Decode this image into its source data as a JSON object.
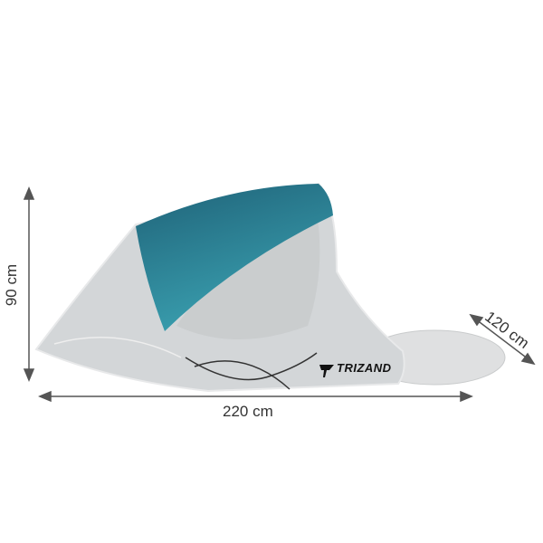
{
  "product": {
    "brand": "TRIZAND",
    "colors": {
      "canopy": "#2e8a9c",
      "body": "#d4d7d9",
      "floor": "#dfe0e1",
      "arrow": "#555555"
    }
  },
  "dimensions": {
    "height_label": "90 cm",
    "width_label": "220 cm",
    "depth_label": "120 cm"
  }
}
